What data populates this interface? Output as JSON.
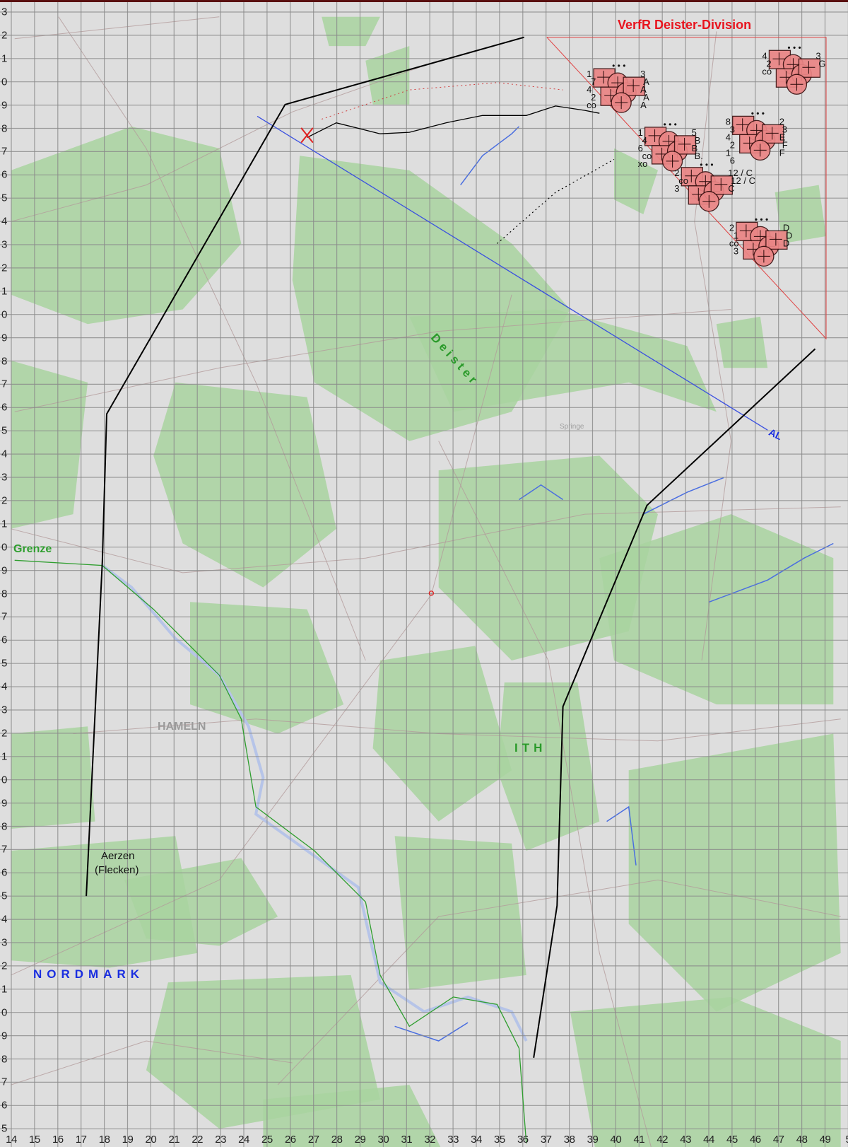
{
  "map": {
    "title": "VerfR Deister-Division",
    "labels": {
      "grenze": "Grenze",
      "deister": "Deister",
      "hameln": "HAMELN",
      "ith": "ITH",
      "aerzen_line1": "Aerzen",
      "aerzen_line2": "(Flecken)",
      "nordmark": "NORDMARK",
      "springe": "Springe",
      "al": "AL"
    },
    "grid": {
      "columns": [
        "14",
        "15",
        "16",
        "17",
        "18",
        "19",
        "20",
        "21",
        "22",
        "23",
        "24",
        "25",
        "26",
        "27",
        "28",
        "29",
        "30",
        "31",
        "32",
        "33",
        "34",
        "35",
        "36",
        "37",
        "38",
        "39",
        "40",
        "41",
        "42",
        "43",
        "44",
        "45",
        "46",
        "47",
        "48",
        "49",
        "5"
      ],
      "rows": [
        "3",
        "2",
        "1",
        "0",
        "9",
        "8",
        "7",
        "6",
        "5",
        "4",
        "3",
        "2",
        "1",
        "0",
        "9",
        "8",
        "7",
        "6",
        "5",
        "4",
        "3",
        "2",
        "1",
        "0",
        "9",
        "8",
        "7",
        "6",
        "5",
        "4",
        "3",
        "2",
        "1",
        "0",
        "9",
        "8",
        "7",
        "6",
        "5",
        "4",
        "3",
        "2",
        "1",
        "0",
        "9",
        "8",
        "7",
        "6",
        "5"
      ]
    },
    "unit_groups": [
      {
        "name": "A",
        "labels": [
          "1",
          "7",
          "4",
          "2",
          "co",
          "3",
          "A",
          "A",
          "A",
          "A"
        ]
      },
      {
        "name": "B",
        "labels": [
          "1",
          "4",
          "6",
          "co",
          "xo",
          "5",
          "B",
          "B",
          "B."
        ]
      },
      {
        "name": "C",
        "labels": [
          "2",
          "co",
          "3",
          "12 / C",
          "12 / C",
          "C"
        ]
      },
      {
        "name": "D",
        "labels": [
          "2",
          "1",
          "co",
          "3",
          "D",
          "D",
          "D"
        ]
      },
      {
        "name": "E-F",
        "labels": [
          "8",
          "3",
          "4",
          "2",
          "1",
          "6",
          "2",
          "3",
          "E",
          "F",
          "F"
        ]
      },
      {
        "name": "G",
        "labels": [
          "4",
          "2",
          "co",
          "3",
          "G"
        ]
      }
    ],
    "colors": {
      "background": "#dedede",
      "forest": "#a9d3a0",
      "grid": "#8a8a8a",
      "unit_fill": "#ea8585",
      "title_red": "#e8141e",
      "boundary_green": "#2f9e2f",
      "label_blue": "#1a2ee0",
      "phase_line": "#000000",
      "al_line": "#3a50e0"
    }
  }
}
